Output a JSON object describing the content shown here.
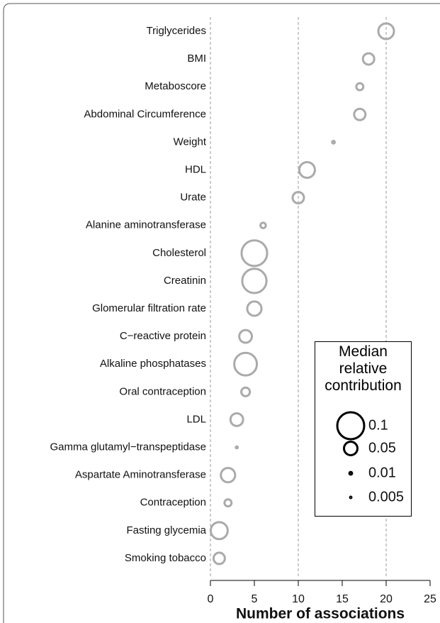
{
  "chart_data": {
    "type": "bubble",
    "categories": [
      "Triglycerides",
      "BMI",
      "Metaboscore",
      "Abdominal Circumference",
      "Weight",
      "HDL",
      "Urate",
      "Alanine aminotransferase",
      "Cholesterol",
      "Creatinin",
      "Glomerular filtration rate",
      "C−reactive protein",
      "Alkaline phosphatases",
      "Oral contraception",
      "LDL",
      "Gamma glutamyl−transpeptidase",
      "Aspartate Aminotransferase",
      "Contraception",
      "Fasting glycemia",
      "Smoking tobacco"
    ],
    "values": [
      20,
      18,
      17,
      17,
      14,
      11,
      10,
      6,
      5,
      5,
      5,
      4,
      4,
      4,
      3,
      3,
      2,
      2,
      1,
      1
    ],
    "sizes": [
      0.058,
      0.042,
      0.026,
      0.042,
      0.01,
      0.058,
      0.042,
      0.02,
      0.095,
      0.09,
      0.053,
      0.047,
      0.084,
      0.032,
      0.047,
      0.007,
      0.053,
      0.026,
      0.063,
      0.042
    ],
    "color": "#aaaaaa",
    "xlabel": "Number of associations",
    "xlim": [
      0,
      25
    ],
    "xticks": [
      0,
      5,
      10,
      15,
      20,
      25
    ],
    "reference_lines": [
      0,
      10,
      20
    ],
    "legend_title": "Median relative contribution",
    "legend_sizes": [
      0.1,
      0.05,
      0.01,
      0.005
    ],
    "legend_color": "#000000"
  }
}
